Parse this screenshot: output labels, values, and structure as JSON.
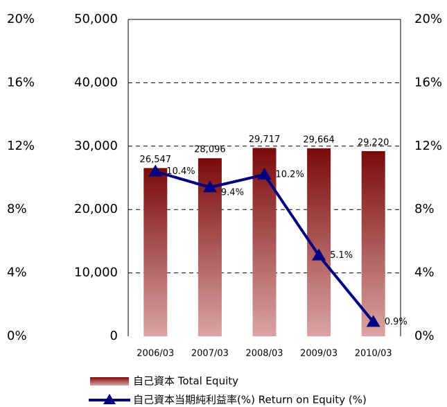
{
  "chart_data": {
    "type": "bar",
    "categories": [
      "2006/03",
      "2007/03",
      "2008/03",
      "2009/03",
      "2010/03"
    ],
    "series": [
      {
        "name": "自己資本 Total Equity",
        "type": "bar",
        "color": "#7a0a0a",
        "values": [
          26547,
          28096,
          29717,
          29664,
          29220
        ],
        "value_labels": [
          "26,547",
          "28,096",
          "29,717",
          "29,664",
          "29,220"
        ]
      },
      {
        "name": "自己資本当期純利益率(%) Return on Equity (%)",
        "type": "line",
        "axis": "y2",
        "color": "#000080",
        "values": [
          10.4,
          9.4,
          10.2,
          5.1,
          0.9
        ],
        "value_labels": [
          "10.4%",
          "9.4%",
          "10.2%",
          "5.1%",
          "0.9%"
        ]
      }
    ],
    "ylim": [
      0,
      50000
    ],
    "yticks": [
      0,
      {
        "value": 10000,
        "label": "10,000"
      },
      {
        "value": 20000,
        "label": "20,000"
      },
      {
        "value": 30000,
        "label": "30,000"
      },
      {
        "value": 40000,
        "label": "40,000"
      },
      {
        "value": 50000,
        "label": "50,000"
      }
    ],
    "y2lim": [
      0,
      20
    ],
    "y2ticks": [
      {
        "value": 0,
        "label": "0%"
      },
      {
        "value": 4,
        "label": "4%"
      },
      {
        "value": 8,
        "label": "8%"
      },
      {
        "value": 12,
        "label": "12%"
      },
      {
        "value": 16,
        "label": "16%"
      },
      {
        "value": 20,
        "label": "20%"
      }
    ],
    "grid": true
  }
}
